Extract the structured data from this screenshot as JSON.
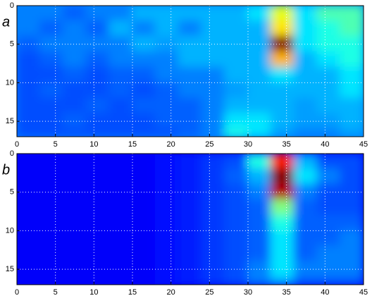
{
  "chart_data": [
    {
      "type": "heatmap",
      "panel_label": "a",
      "colormap": "jet",
      "zlim": [
        0,
        1
      ],
      "grid": true,
      "xlim": [
        0,
        45
      ],
      "xticks": [
        0,
        5,
        10,
        15,
        20,
        25,
        30,
        35,
        40,
        45
      ],
      "ylim": [
        0,
        17
      ],
      "yticks": [
        0,
        5,
        10,
        15
      ],
      "x_edges": [
        0,
        3,
        6,
        9,
        12,
        15,
        18,
        21,
        24,
        27,
        30,
        33,
        36,
        39,
        42,
        45
      ],
      "y_edges": [
        0,
        2,
        4,
        6,
        8,
        10,
        12,
        14,
        16,
        17
      ],
      "z": [
        [
          0.25,
          0.25,
          0.22,
          0.25,
          0.25,
          0.3,
          0.3,
          0.3,
          0.3,
          0.3,
          0.35,
          0.6,
          0.35,
          0.45,
          0.45
        ],
        [
          0.25,
          0.22,
          0.25,
          0.22,
          0.3,
          0.25,
          0.3,
          0.25,
          0.3,
          0.3,
          0.3,
          0.65,
          0.35,
          0.4,
          0.45
        ],
        [
          0.22,
          0.25,
          0.25,
          0.25,
          0.25,
          0.3,
          0.28,
          0.3,
          0.3,
          0.3,
          0.3,
          1.0,
          0.35,
          0.4,
          0.4
        ],
        [
          0.2,
          0.22,
          0.25,
          0.22,
          0.25,
          0.25,
          0.25,
          0.3,
          0.3,
          0.3,
          0.3,
          0.7,
          0.3,
          0.35,
          0.4
        ],
        [
          0.2,
          0.2,
          0.22,
          0.2,
          0.22,
          0.22,
          0.25,
          0.25,
          0.25,
          0.3,
          0.3,
          0.35,
          0.3,
          0.3,
          0.35
        ],
        [
          0.2,
          0.22,
          0.2,
          0.2,
          0.22,
          0.2,
          0.22,
          0.25,
          0.25,
          0.28,
          0.3,
          0.3,
          0.3,
          0.3,
          0.35
        ],
        [
          0.2,
          0.2,
          0.2,
          0.22,
          0.2,
          0.22,
          0.22,
          0.22,
          0.25,
          0.3,
          0.3,
          0.3,
          0.28,
          0.3,
          0.3
        ],
        [
          0.2,
          0.2,
          0.22,
          0.2,
          0.2,
          0.2,
          0.22,
          0.22,
          0.25,
          0.35,
          0.35,
          0.3,
          0.28,
          0.28,
          0.3
        ],
        [
          0.2,
          0.2,
          0.2,
          0.2,
          0.2,
          0.2,
          0.2,
          0.22,
          0.25,
          0.4,
          0.35,
          0.28,
          0.25,
          0.25,
          0.28
        ]
      ]
    },
    {
      "type": "heatmap",
      "panel_label": "b",
      "colormap": "jet",
      "zlim": [
        0,
        1
      ],
      "grid": true,
      "xlim": [
        0,
        45
      ],
      "xticks": [
        0,
        5,
        10,
        15,
        20,
        25,
        30,
        35,
        40,
        45
      ],
      "ylim": [
        0,
        17
      ],
      "yticks": [
        0,
        5,
        10,
        15
      ],
      "x_edges": [
        0,
        3,
        6,
        9,
        12,
        15,
        18,
        21,
        24,
        27,
        30,
        33,
        36,
        39,
        42,
        45
      ],
      "y_edges": [
        0,
        2,
        4,
        6,
        8,
        10,
        12,
        14,
        16,
        17
      ],
      "z": [
        [
          0.12,
          0.12,
          0.12,
          0.12,
          0.12,
          0.12,
          0.14,
          0.15,
          0.18,
          0.2,
          0.4,
          0.85,
          0.3,
          0.2,
          0.2
        ],
        [
          0.12,
          0.12,
          0.12,
          0.12,
          0.12,
          0.12,
          0.14,
          0.15,
          0.18,
          0.22,
          0.3,
          1.0,
          0.35,
          0.25,
          0.2
        ],
        [
          0.12,
          0.12,
          0.12,
          0.12,
          0.12,
          0.12,
          0.14,
          0.15,
          0.18,
          0.2,
          0.25,
          0.95,
          0.25,
          0.2,
          0.2
        ],
        [
          0.12,
          0.12,
          0.12,
          0.12,
          0.12,
          0.12,
          0.14,
          0.15,
          0.18,
          0.2,
          0.22,
          0.5,
          0.22,
          0.2,
          0.2
        ],
        [
          0.12,
          0.12,
          0.12,
          0.12,
          0.12,
          0.12,
          0.14,
          0.15,
          0.18,
          0.2,
          0.22,
          0.4,
          0.22,
          0.22,
          0.22
        ],
        [
          0.12,
          0.12,
          0.12,
          0.12,
          0.12,
          0.12,
          0.14,
          0.15,
          0.18,
          0.2,
          0.22,
          0.35,
          0.22,
          0.22,
          0.25
        ],
        [
          0.12,
          0.12,
          0.12,
          0.12,
          0.12,
          0.12,
          0.14,
          0.15,
          0.18,
          0.2,
          0.22,
          0.35,
          0.22,
          0.25,
          0.25
        ],
        [
          0.12,
          0.12,
          0.12,
          0.12,
          0.12,
          0.12,
          0.14,
          0.15,
          0.18,
          0.2,
          0.25,
          0.35,
          0.25,
          0.25,
          0.25
        ],
        [
          0.12,
          0.12,
          0.12,
          0.12,
          0.12,
          0.12,
          0.14,
          0.15,
          0.18,
          0.2,
          0.25,
          0.3,
          0.22,
          0.22,
          0.22
        ]
      ]
    }
  ]
}
